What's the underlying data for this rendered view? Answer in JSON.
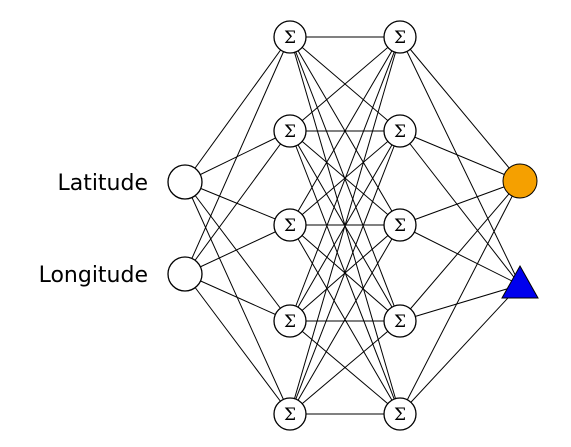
{
  "inputs": [
    {
      "label": "Latitude"
    },
    {
      "label": "Longitude"
    }
  ],
  "hidden_layers": [
    {
      "node_count": 5,
      "symbol": "Σ"
    },
    {
      "node_count": 5,
      "symbol": "Σ"
    }
  ],
  "outputs": [
    {
      "shape": "circle",
      "color": "#F5A000"
    },
    {
      "shape": "triangle",
      "color": "#0000EE"
    }
  ],
  "connectivity": "fully-connected"
}
